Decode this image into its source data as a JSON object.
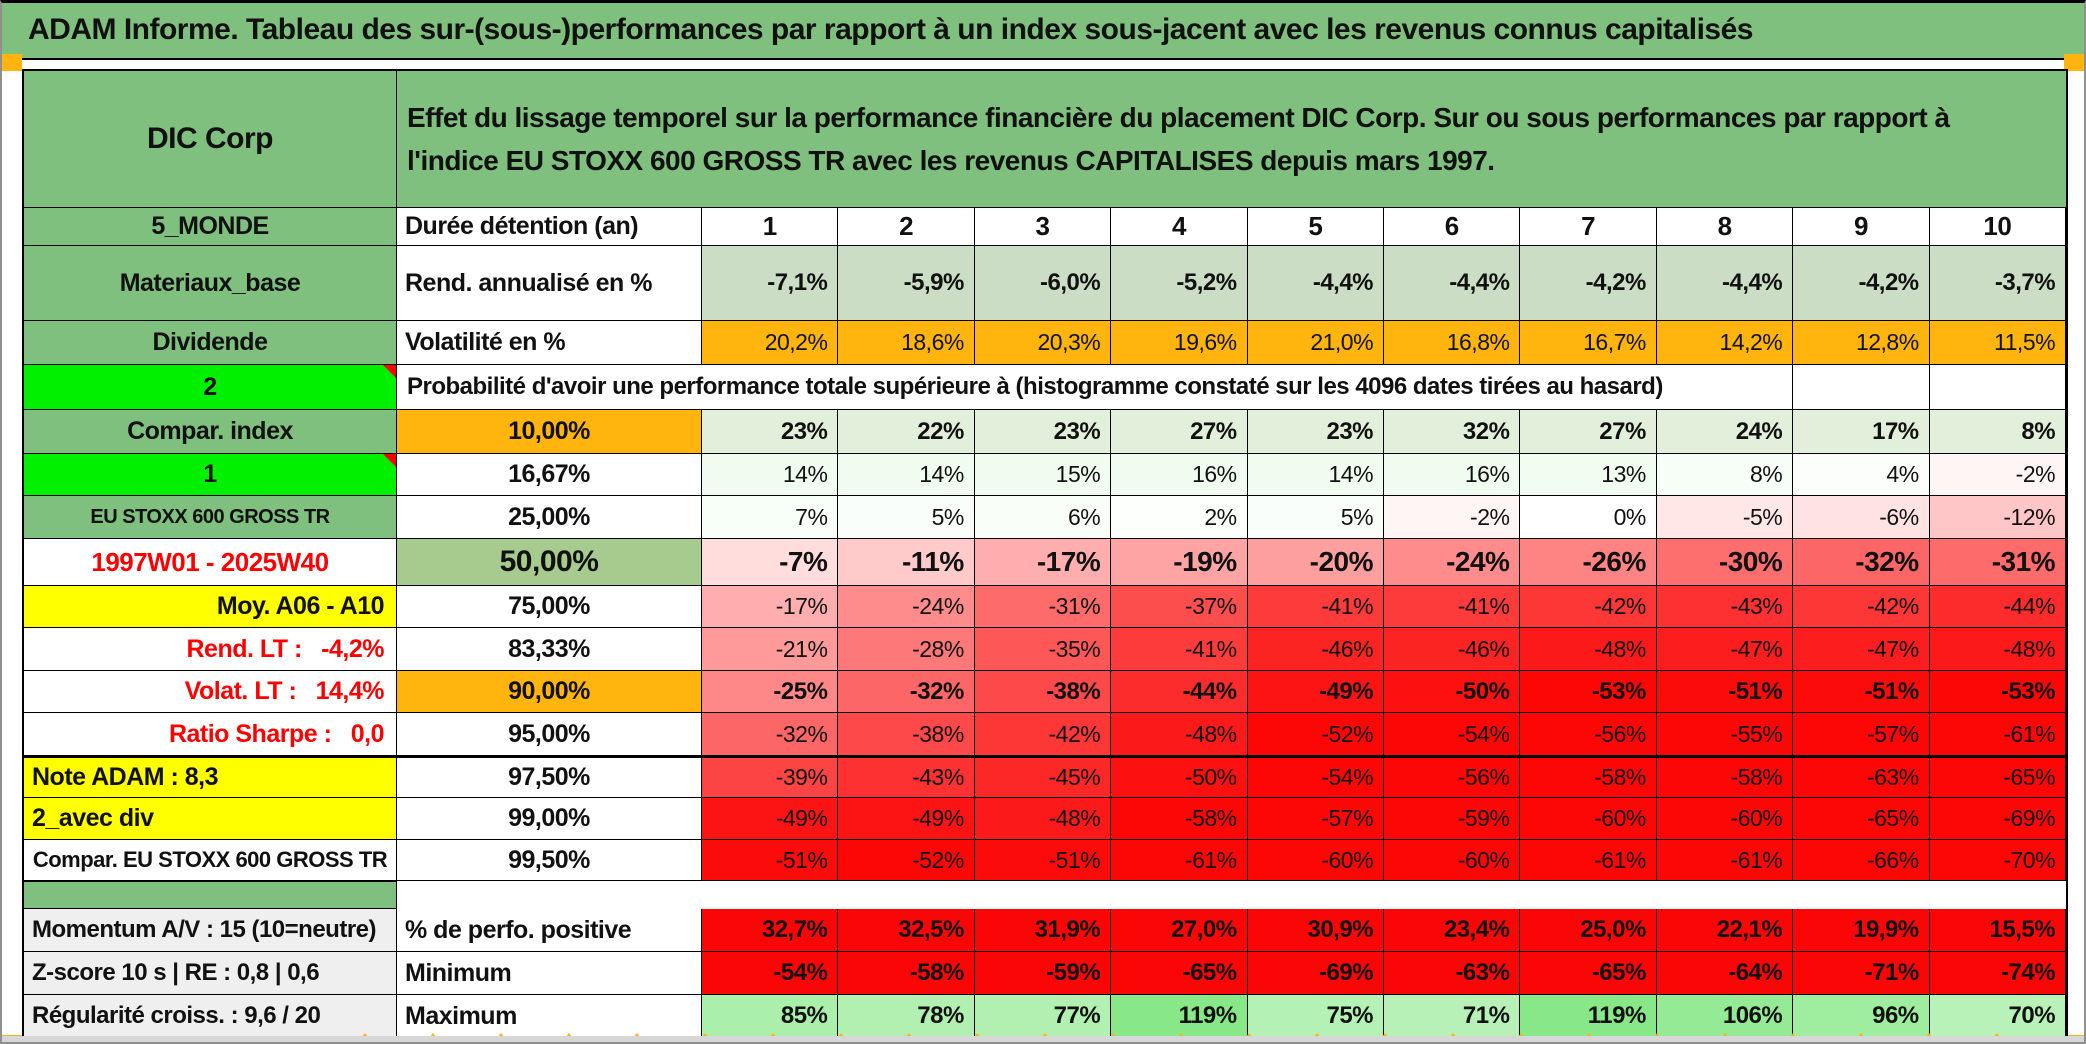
{
  "title": "ADAM Informe. Tableau des sur-(sous-)performances par rapport à un index sous-jacent avec les revenus connus capitalisés",
  "header": {
    "name": "DIC Corp",
    "description": "Effet du lissage temporel sur la performance financière du placement DIC Corp. Sur ou sous performances par rapport à l'indice EU STOXX 600 GROSS TR avec les revenus CAPITALISES depuis mars 1997."
  },
  "colors": {
    "sage_green": "#7FC07F",
    "bright_green": "#00F000",
    "orange": "#FFB40E",
    "yellow": "#FFFF00",
    "light_green_fill": "#CBDEC5",
    "prob10_fill": "#E2EFDA",
    "mid50_fill": "#A7CA8E",
    "pure_red": "#FB0606",
    "red_text": "#FF0000",
    "gray_label": "#EFEFEF"
  },
  "rows": [
    {
      "id": "duree",
      "label": "5_MONDE",
      "labelStyle": "sage",
      "mid": "Durée détention (an)",
      "midStyle": "plain-left",
      "values": [
        "1",
        "2",
        "3",
        "4",
        "5",
        "6",
        "7",
        "8",
        "9",
        "10"
      ],
      "cellStyle": "header"
    },
    {
      "id": "rend",
      "label": "Materiaux_base",
      "labelStyle": "sage",
      "mid": "Rend. annualisé en %",
      "midStyle": "plain-left",
      "values": [
        "-7,1%",
        "-5,9%",
        "-6,0%",
        "-5,2%",
        "-4,4%",
        "-4,4%",
        "-4,2%",
        "-4,4%",
        "-4,2%",
        "-3,7%"
      ],
      "cellStyle": "fixed",
      "cellBg": "light_green_fill",
      "bold": true
    },
    {
      "id": "volat",
      "label": "Dividende",
      "labelStyle": "sage",
      "mid": "Volatilité en %",
      "midStyle": "plain-left",
      "values": [
        "20,2%",
        "18,6%",
        "20,3%",
        "19,6%",
        "21,0%",
        "16,8%",
        "16,7%",
        "14,2%",
        "12,8%",
        "11,5%"
      ],
      "cellStyle": "fixed",
      "cellBg": "orange"
    },
    {
      "id": "proba",
      "label": "2",
      "labelStyle": "bright",
      "note": true,
      "merged": "Probabilité d'avoir une performance totale supérieure à (histogramme constaté sur les 4096 dates tirées au hasard)",
      "trailingEmpty": 2
    },
    {
      "id": "p10",
      "label": "Compar. index",
      "labelStyle": "sage",
      "mid": "10,00%",
      "midStyle": "plain-center mid-orange",
      "values": [
        "23%",
        "22%",
        "23%",
        "27%",
        "23%",
        "32%",
        "27%",
        "24%",
        "17%",
        "8%"
      ],
      "cellStyle": "fixed",
      "cellBg": "prob10_fill",
      "bold": true
    },
    {
      "id": "p1667",
      "label": "1",
      "labelStyle": "bright",
      "note": true,
      "mid": "16,67%",
      "midStyle": "plain-center",
      "values": [
        "14%",
        "14%",
        "15%",
        "16%",
        "14%",
        "16%",
        "13%",
        "8%",
        "4%",
        "-2%"
      ],
      "cellStyle": "heat"
    },
    {
      "id": "p25",
      "label": "EU STOXX 600 GROSS TR",
      "labelStyle": "sage-small",
      "mid": "25,00%",
      "midStyle": "plain-center",
      "values": [
        "7%",
        "5%",
        "6%",
        "2%",
        "5%",
        "-2%",
        "0%",
        "-5%",
        "-6%",
        "-12%"
      ],
      "cellStyle": "heat"
    },
    {
      "id": "p50",
      "label": "1997W01 - 2025W40",
      "labelStyle": "red-center",
      "mid": "50,00%",
      "midStyle": "plain-center mid-sage50",
      "values": [
        "-7%",
        "-11%",
        "-17%",
        "-19%",
        "-20%",
        "-24%",
        "-26%",
        "-30%",
        "-32%",
        "-31%"
      ],
      "cellStyle": "heat",
      "bold": true,
      "big": true
    },
    {
      "id": "p75",
      "label": "Moy. A06 - A10",
      "labelStyle": "yellow-right",
      "mid": "75,00%",
      "midStyle": "plain-center",
      "values": [
        "-17%",
        "-24%",
        "-31%",
        "-37%",
        "-41%",
        "-41%",
        "-42%",
        "-43%",
        "-42%",
        "-44%"
      ],
      "cellStyle": "heat"
    },
    {
      "id": "p8333",
      "label": "Rend. LT :   -4,2%",
      "labelStyle": "red-right",
      "mid": "83,33%",
      "midStyle": "plain-center",
      "values": [
        "-21%",
        "-28%",
        "-35%",
        "-41%",
        "-46%",
        "-46%",
        "-48%",
        "-47%",
        "-47%",
        "-48%"
      ],
      "cellStyle": "heat"
    },
    {
      "id": "p90",
      "label": "Volat. LT :   14,4%",
      "labelStyle": "red-right",
      "mid": "90,00%",
      "midStyle": "plain-center mid-orange",
      "values": [
        "-25%",
        "-32%",
        "-38%",
        "-44%",
        "-49%",
        "-50%",
        "-53%",
        "-51%",
        "-51%",
        "-53%"
      ],
      "cellStyle": "heat",
      "bold": true
    },
    {
      "id": "p95",
      "label": "Ratio Sharpe :   0,0",
      "labelStyle": "red-right",
      "mid": "95,00%",
      "midStyle": "plain-center",
      "values": [
        "-32%",
        "-38%",
        "-42%",
        "-48%",
        "-52%",
        "-54%",
        "-56%",
        "-55%",
        "-57%",
        "-61%"
      ],
      "cellStyle": "heat"
    },
    {
      "id": "p975",
      "label": "Note ADAM : 8,3",
      "labelStyle": "yellow-left",
      "mid": "97,50%",
      "midStyle": "plain-center",
      "values": [
        "-39%",
        "-43%",
        "-45%",
        "-50%",
        "-54%",
        "-56%",
        "-58%",
        "-58%",
        "-63%",
        "-65%"
      ],
      "cellStyle": "heat",
      "thickTop": true
    },
    {
      "id": "p99",
      "label": "2_avec div",
      "labelStyle": "yellow-left",
      "mid": "99,00%",
      "midStyle": "plain-center",
      "values": [
        "-49%",
        "-49%",
        "-48%",
        "-58%",
        "-57%",
        "-59%",
        "-60%",
        "-60%",
        "-65%",
        "-69%"
      ],
      "cellStyle": "heat"
    },
    {
      "id": "p995",
      "label": "Compar. EU STOXX 600 GROSS TR",
      "labelStyle": "plain-center-small",
      "mid": "99,50%",
      "midStyle": "plain-center",
      "values": [
        "-51%",
        "-52%",
        "-51%",
        "-61%",
        "-60%",
        "-60%",
        "-61%",
        "-61%",
        "-66%",
        "-70%"
      ],
      "cellStyle": "heat"
    },
    {
      "id": "spacer",
      "spacer": true
    },
    {
      "id": "momentum",
      "label": "Momentum A/V : 15 (10=neutre)",
      "labelStyle": "gray-left",
      "mid": "% de perfo. positive",
      "midStyle": "plain-left",
      "values": [
        "32,7%",
        "32,5%",
        "31,9%",
        "27,0%",
        "30,9%",
        "23,4%",
        "25,0%",
        "22,1%",
        "19,9%",
        "15,5%"
      ],
      "cellStyle": "fixed",
      "cellBg": "pure_red",
      "bold": true
    },
    {
      "id": "zscore",
      "label": "Z-score 10 s | RE : 0,8 | 0,6",
      "labelStyle": "gray-left",
      "mid": "Minimum",
      "midStyle": "plain-left",
      "values": [
        "-54%",
        "-58%",
        "-59%",
        "-65%",
        "-69%",
        "-63%",
        "-65%",
        "-64%",
        "-71%",
        "-74%"
      ],
      "cellStyle": "fixed",
      "cellBg": "pure_red",
      "bold": true
    },
    {
      "id": "regularite",
      "label": "Régularité croiss. : 9,6 / 20",
      "labelStyle": "gray-left",
      "mid": "Maximum",
      "midStyle": "plain-left",
      "values": [
        "85%",
        "78%",
        "77%",
        "119%",
        "75%",
        "71%",
        "119%",
        "106%",
        "96%",
        "70%"
      ],
      "cellStyle": "heat",
      "bold": true
    }
  ]
}
